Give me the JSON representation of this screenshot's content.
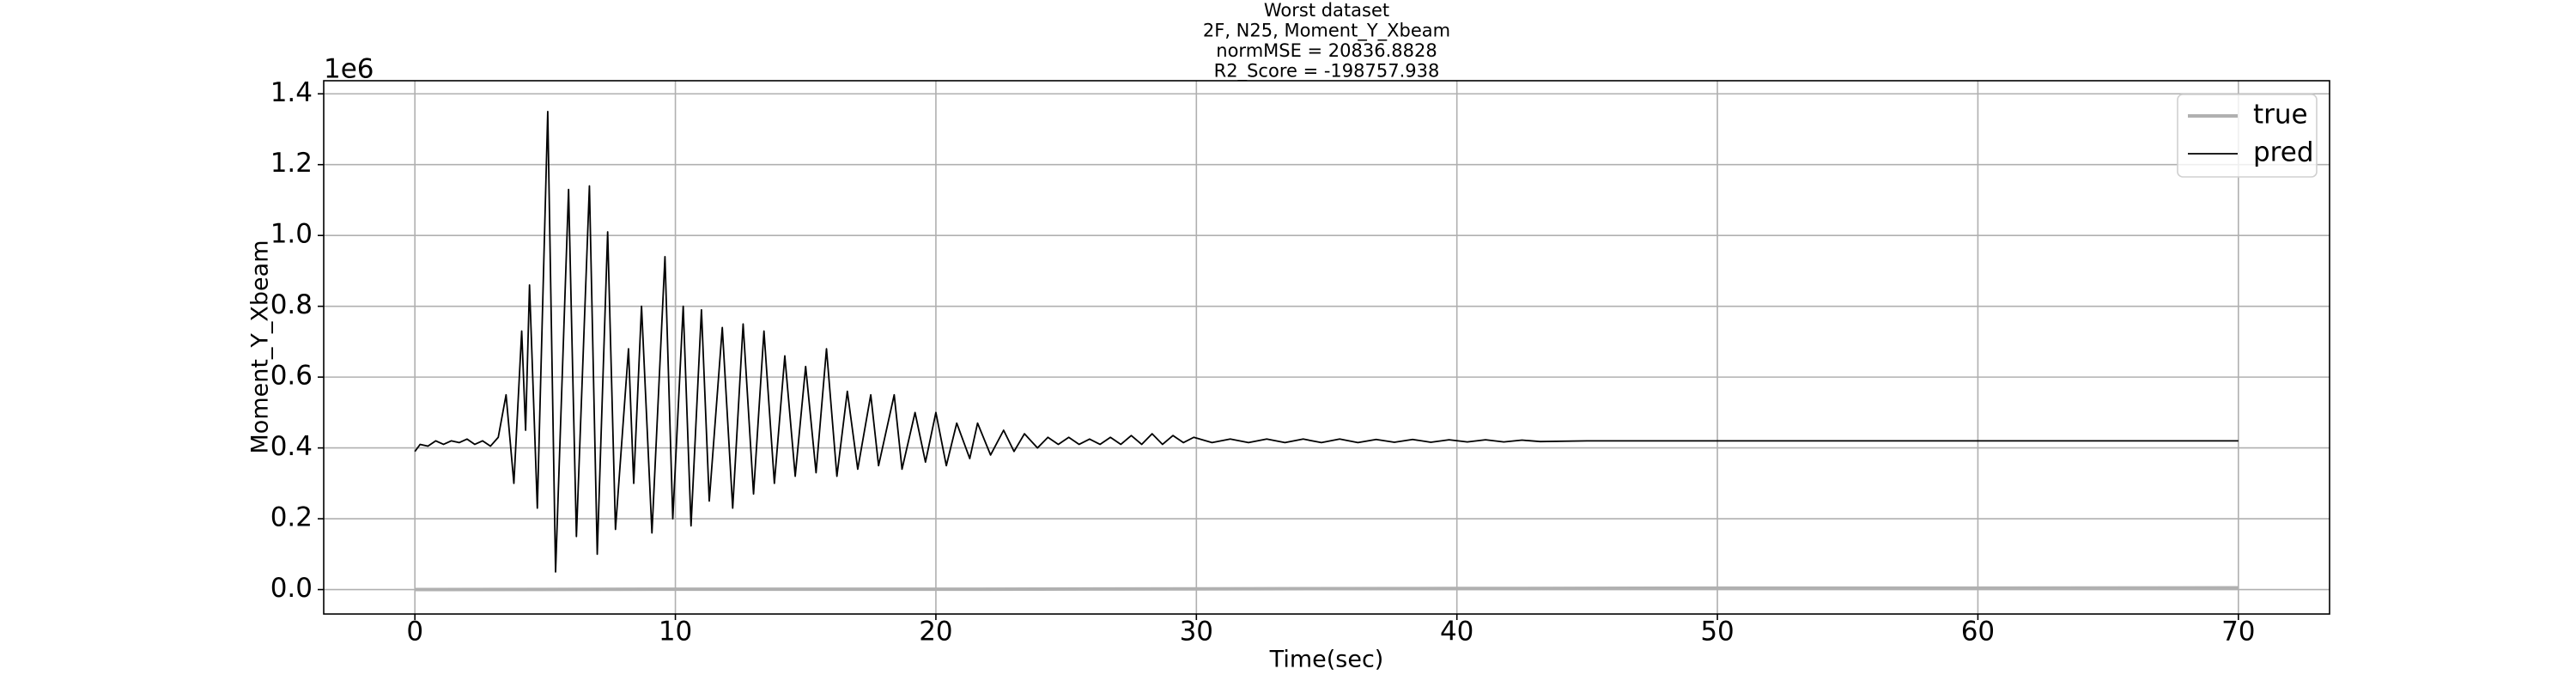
{
  "chart_data": {
    "type": "line",
    "title": [
      "Worst dataset",
      "2F, N25, Moment_Y_Xbeam",
      "normMSE = 20836.8828",
      "R2_Score = -198757.938"
    ],
    "x_label": "Time(sec)",
    "y_label": "Moment_Y_Xbeam",
    "y_offset_label": "1e6",
    "xlim": [
      -3.5,
      73.5
    ],
    "xticks": [
      0,
      10,
      20,
      30,
      40,
      50,
      60,
      70
    ],
    "ylim": [
      -0.069,
      1.437
    ],
    "yticks": [
      {
        "value": 0,
        "label": "0.0"
      },
      0.2,
      0.4,
      0.6,
      0.8,
      {
        "value": 1,
        "label": "1.0"
      },
      1.2,
      1.4
    ],
    "grid": true,
    "legend": "upper right",
    "series": [
      {
        "name": "true",
        "color": "#b0b0b0",
        "x": [
          0,
          10,
          20,
          30,
          40,
          50,
          60,
          70
        ],
        "values": [
          0,
          0.001,
          0.001,
          0.002,
          0.003,
          0.004,
          0.004,
          0.005
        ]
      },
      {
        "name": "pred",
        "color": "#000000",
        "x": [
          0,
          0.2,
          0.5,
          0.8,
          1.1,
          1.4,
          1.7,
          2,
          2.3,
          2.6,
          2.9,
          3.2,
          3.5,
          3.8,
          4.1,
          4.25,
          4.4,
          4.7,
          5.1,
          5.4,
          5.9,
          6.2,
          6.7,
          7,
          7.4,
          7.7,
          8.2,
          8.4,
          8.7,
          9.1,
          9.6,
          9.9,
          10.3,
          10.6,
          11,
          11.3,
          11.8,
          12.2,
          12.6,
          13,
          13.4,
          13.8,
          14.2,
          14.6,
          15,
          15.4,
          15.8,
          16.2,
          16.6,
          17,
          17.5,
          17.8,
          18.4,
          18.7,
          19.2,
          19.6,
          20,
          20.4,
          20.8,
          21.3,
          21.6,
          22.1,
          22.6,
          23,
          23.4,
          23.9,
          24.3,
          24.7,
          25.1,
          25.5,
          25.9,
          26.3,
          26.7,
          27.1,
          27.5,
          27.9,
          28.3,
          28.7,
          29.1,
          29.5,
          29.9,
          30.6,
          31.3,
          32,
          32.7,
          33.4,
          34.1,
          34.8,
          35.5,
          36.2,
          36.9,
          37.6,
          38.3,
          39,
          39.7,
          40.4,
          41.1,
          41.8,
          42.5,
          43.2,
          45,
          50,
          55,
          60,
          65,
          70
        ],
        "values": [
          0.39,
          0.41,
          0.405,
          0.42,
          0.41,
          0.42,
          0.415,
          0.425,
          0.41,
          0.42,
          0.405,
          0.43,
          0.55,
          0.3,
          0.73,
          0.45,
          0.86,
          0.23,
          1.35,
          0.05,
          1.13,
          0.15,
          1.14,
          0.1,
          1.01,
          0.17,
          0.68,
          0.3,
          0.8,
          0.16,
          0.94,
          0.2,
          0.8,
          0.18,
          0.79,
          0.25,
          0.74,
          0.23,
          0.75,
          0.27,
          0.73,
          0.3,
          0.66,
          0.32,
          0.63,
          0.33,
          0.68,
          0.32,
          0.56,
          0.34,
          0.55,
          0.35,
          0.55,
          0.34,
          0.5,
          0.36,
          0.5,
          0.35,
          0.47,
          0.37,
          0.47,
          0.38,
          0.45,
          0.39,
          0.44,
          0.4,
          0.43,
          0.41,
          0.43,
          0.41,
          0.425,
          0.41,
          0.43,
          0.41,
          0.435,
          0.41,
          0.44,
          0.41,
          0.435,
          0.415,
          0.43,
          0.415,
          0.425,
          0.415,
          0.425,
          0.415,
          0.425,
          0.415,
          0.425,
          0.415,
          0.424,
          0.416,
          0.424,
          0.416,
          0.423,
          0.417,
          0.423,
          0.417,
          0.422,
          0.418,
          0.42,
          0.42,
          0.42,
          0.42,
          0.42,
          0.42
        ]
      }
    ]
  }
}
